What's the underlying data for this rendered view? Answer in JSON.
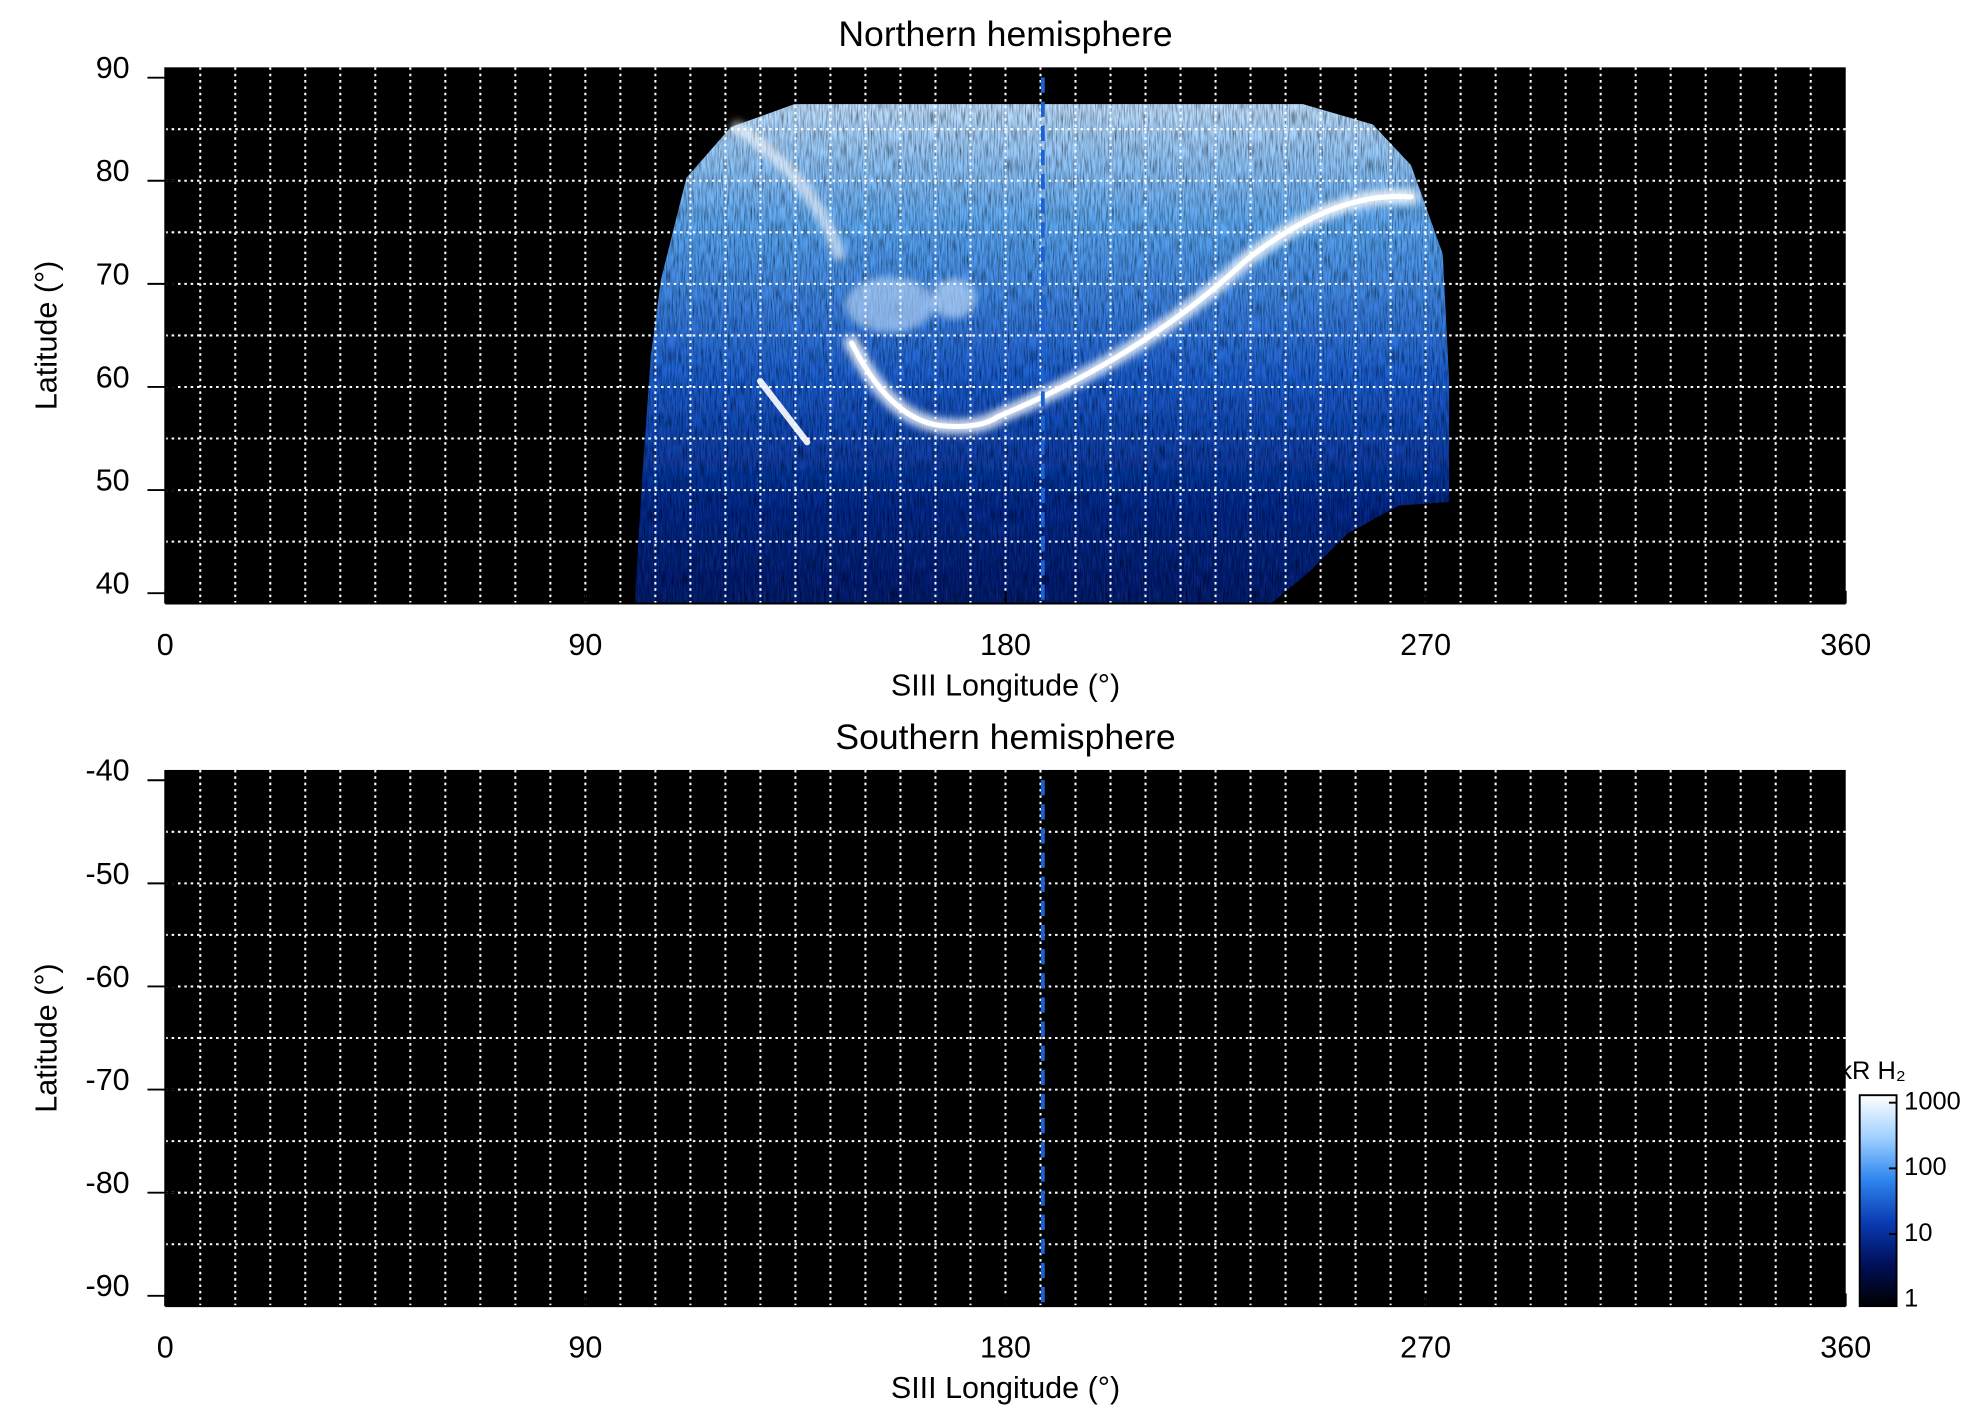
{
  "chart_data": [
    {
      "type": "heatmap",
      "title": "Northern hemisphere",
      "xlabel": "SIII Longitude (°)",
      "ylabel": "Latitude (°)",
      "xlim": [
        0,
        360
      ],
      "xticks": [
        0,
        90,
        180,
        270,
        360
      ],
      "ylim": [
        39,
        91
      ],
      "yticks": [
        40,
        50,
        60,
        70,
        80,
        90
      ],
      "xgrid": [
        7.5,
        15,
        22.5,
        30,
        37.5,
        45,
        52.5,
        60,
        67.5,
        75,
        82.5,
        90,
        97.5,
        105,
        112.5,
        120,
        127.5,
        135,
        142.5,
        150,
        157.5,
        165,
        172.5,
        180,
        187.5,
        195,
        202.5,
        210,
        217.5,
        225,
        232.5,
        240,
        247.5,
        255,
        262.5,
        270,
        277.5,
        285,
        292.5,
        300,
        307.5,
        315,
        322.5,
        330,
        337.5,
        345,
        352.5
      ],
      "ygrid": [
        45,
        50,
        55,
        60,
        65,
        70,
        75,
        80,
        85
      ],
      "grid_color": "#ffffff",
      "reference_line": {
        "x": 188,
        "color": "#1a62d6"
      }
    },
    {
      "type": "heatmap",
      "title": "Southern hemisphere",
      "xlabel": "SIII Longitude (°)",
      "ylabel": "Latitude (°)",
      "xlim": [
        0,
        360
      ],
      "xticks": [
        0,
        90,
        180,
        270,
        360
      ],
      "ylim": [
        -91,
        -39
      ],
      "yticks": [
        -40,
        -50,
        -60,
        -70,
        -80,
        -90
      ],
      "xgrid": [
        7.5,
        15,
        22.5,
        30,
        37.5,
        45,
        52.5,
        60,
        67.5,
        75,
        82.5,
        90,
        97.5,
        105,
        112.5,
        120,
        127.5,
        135,
        142.5,
        150,
        157.5,
        165,
        172.5,
        180,
        187.5,
        195,
        202.5,
        210,
        217.5,
        225,
        232.5,
        240,
        247.5,
        255,
        262.5,
        270,
        277.5,
        285,
        292.5,
        300,
        307.5,
        315,
        322.5,
        330,
        337.5,
        345,
        352.5
      ],
      "ygrid": [
        -45,
        -50,
        -55,
        -60,
        -65,
        -70,
        -75,
        -80,
        -85
      ],
      "grid_color": "#ffffff",
      "reference_line": {
        "x": 188,
        "color": "#1a62d6"
      }
    },
    {
      "type": "colorbar",
      "title": "kR H₂",
      "log_scale": true,
      "ylim": [
        0.8,
        1300
      ],
      "yticks": [
        1,
        10,
        100,
        1000
      ],
      "colors": [
        "#000000",
        "#00105a",
        "#0a3cb4",
        "#2f86ee",
        "#9fd0ff",
        "#ffffff"
      ]
    }
  ]
}
